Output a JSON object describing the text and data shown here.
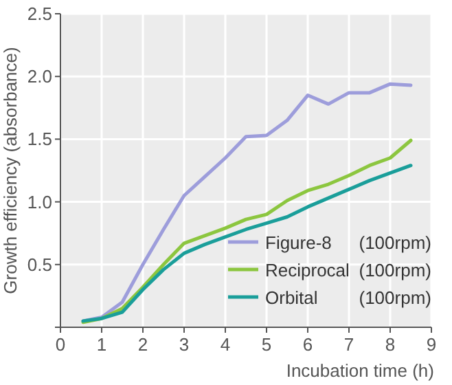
{
  "chart_data": {
    "type": "line",
    "xlabel": "Incubation time (h)",
    "ylabel": "Growth efficiency (absorbance)",
    "x": [
      0.55,
      1,
      1.5,
      2,
      2.5,
      3,
      3.5,
      4,
      4.5,
      5,
      5.5,
      6,
      6.5,
      7,
      7.5,
      8,
      8.5
    ],
    "series": [
      {
        "name": "Figure-8 (100rpm)",
        "color": "#9d9ddb",
        "values": [
          0.05,
          0.08,
          0.2,
          0.5,
          0.78,
          1.05,
          1.2,
          1.35,
          1.52,
          1.53,
          1.65,
          1.85,
          1.78,
          1.87,
          1.87,
          1.94,
          1.93
        ]
      },
      {
        "name": "Reciprocal (100rpm)",
        "color": "#8cc63f",
        "values": [
          0.04,
          0.07,
          0.15,
          0.32,
          0.5,
          0.67,
          0.73,
          0.79,
          0.86,
          0.9,
          1.01,
          1.09,
          1.14,
          1.21,
          1.29,
          1.35,
          1.49
        ]
      },
      {
        "name": "Orbital (100rpm)",
        "color": "#1a9e9a",
        "values": [
          0.05,
          0.07,
          0.12,
          0.3,
          0.46,
          0.59,
          0.66,
          0.72,
          0.78,
          0.83,
          0.88,
          0.96,
          1.03,
          1.1,
          1.17,
          1.23,
          1.29
        ]
      }
    ],
    "xlim": [
      0,
      9
    ],
    "xticks": [
      0,
      1,
      2,
      3,
      4,
      5,
      6,
      7,
      8,
      9
    ],
    "ylim": [
      0,
      2.5
    ],
    "yticks": [
      {
        "value": 0,
        "label": null
      },
      {
        "value": 0.5,
        "label": "0.5"
      },
      {
        "value": 1,
        "label": "1.0"
      },
      {
        "value": 1.5,
        "label": "1.5"
      },
      {
        "value": 2,
        "label": "2.0"
      },
      {
        "value": 2.5,
        "label": "2.5"
      }
    ],
    "grid": true,
    "legend": "bottom right",
    "marker": "none",
    "line_style": "solid"
  }
}
